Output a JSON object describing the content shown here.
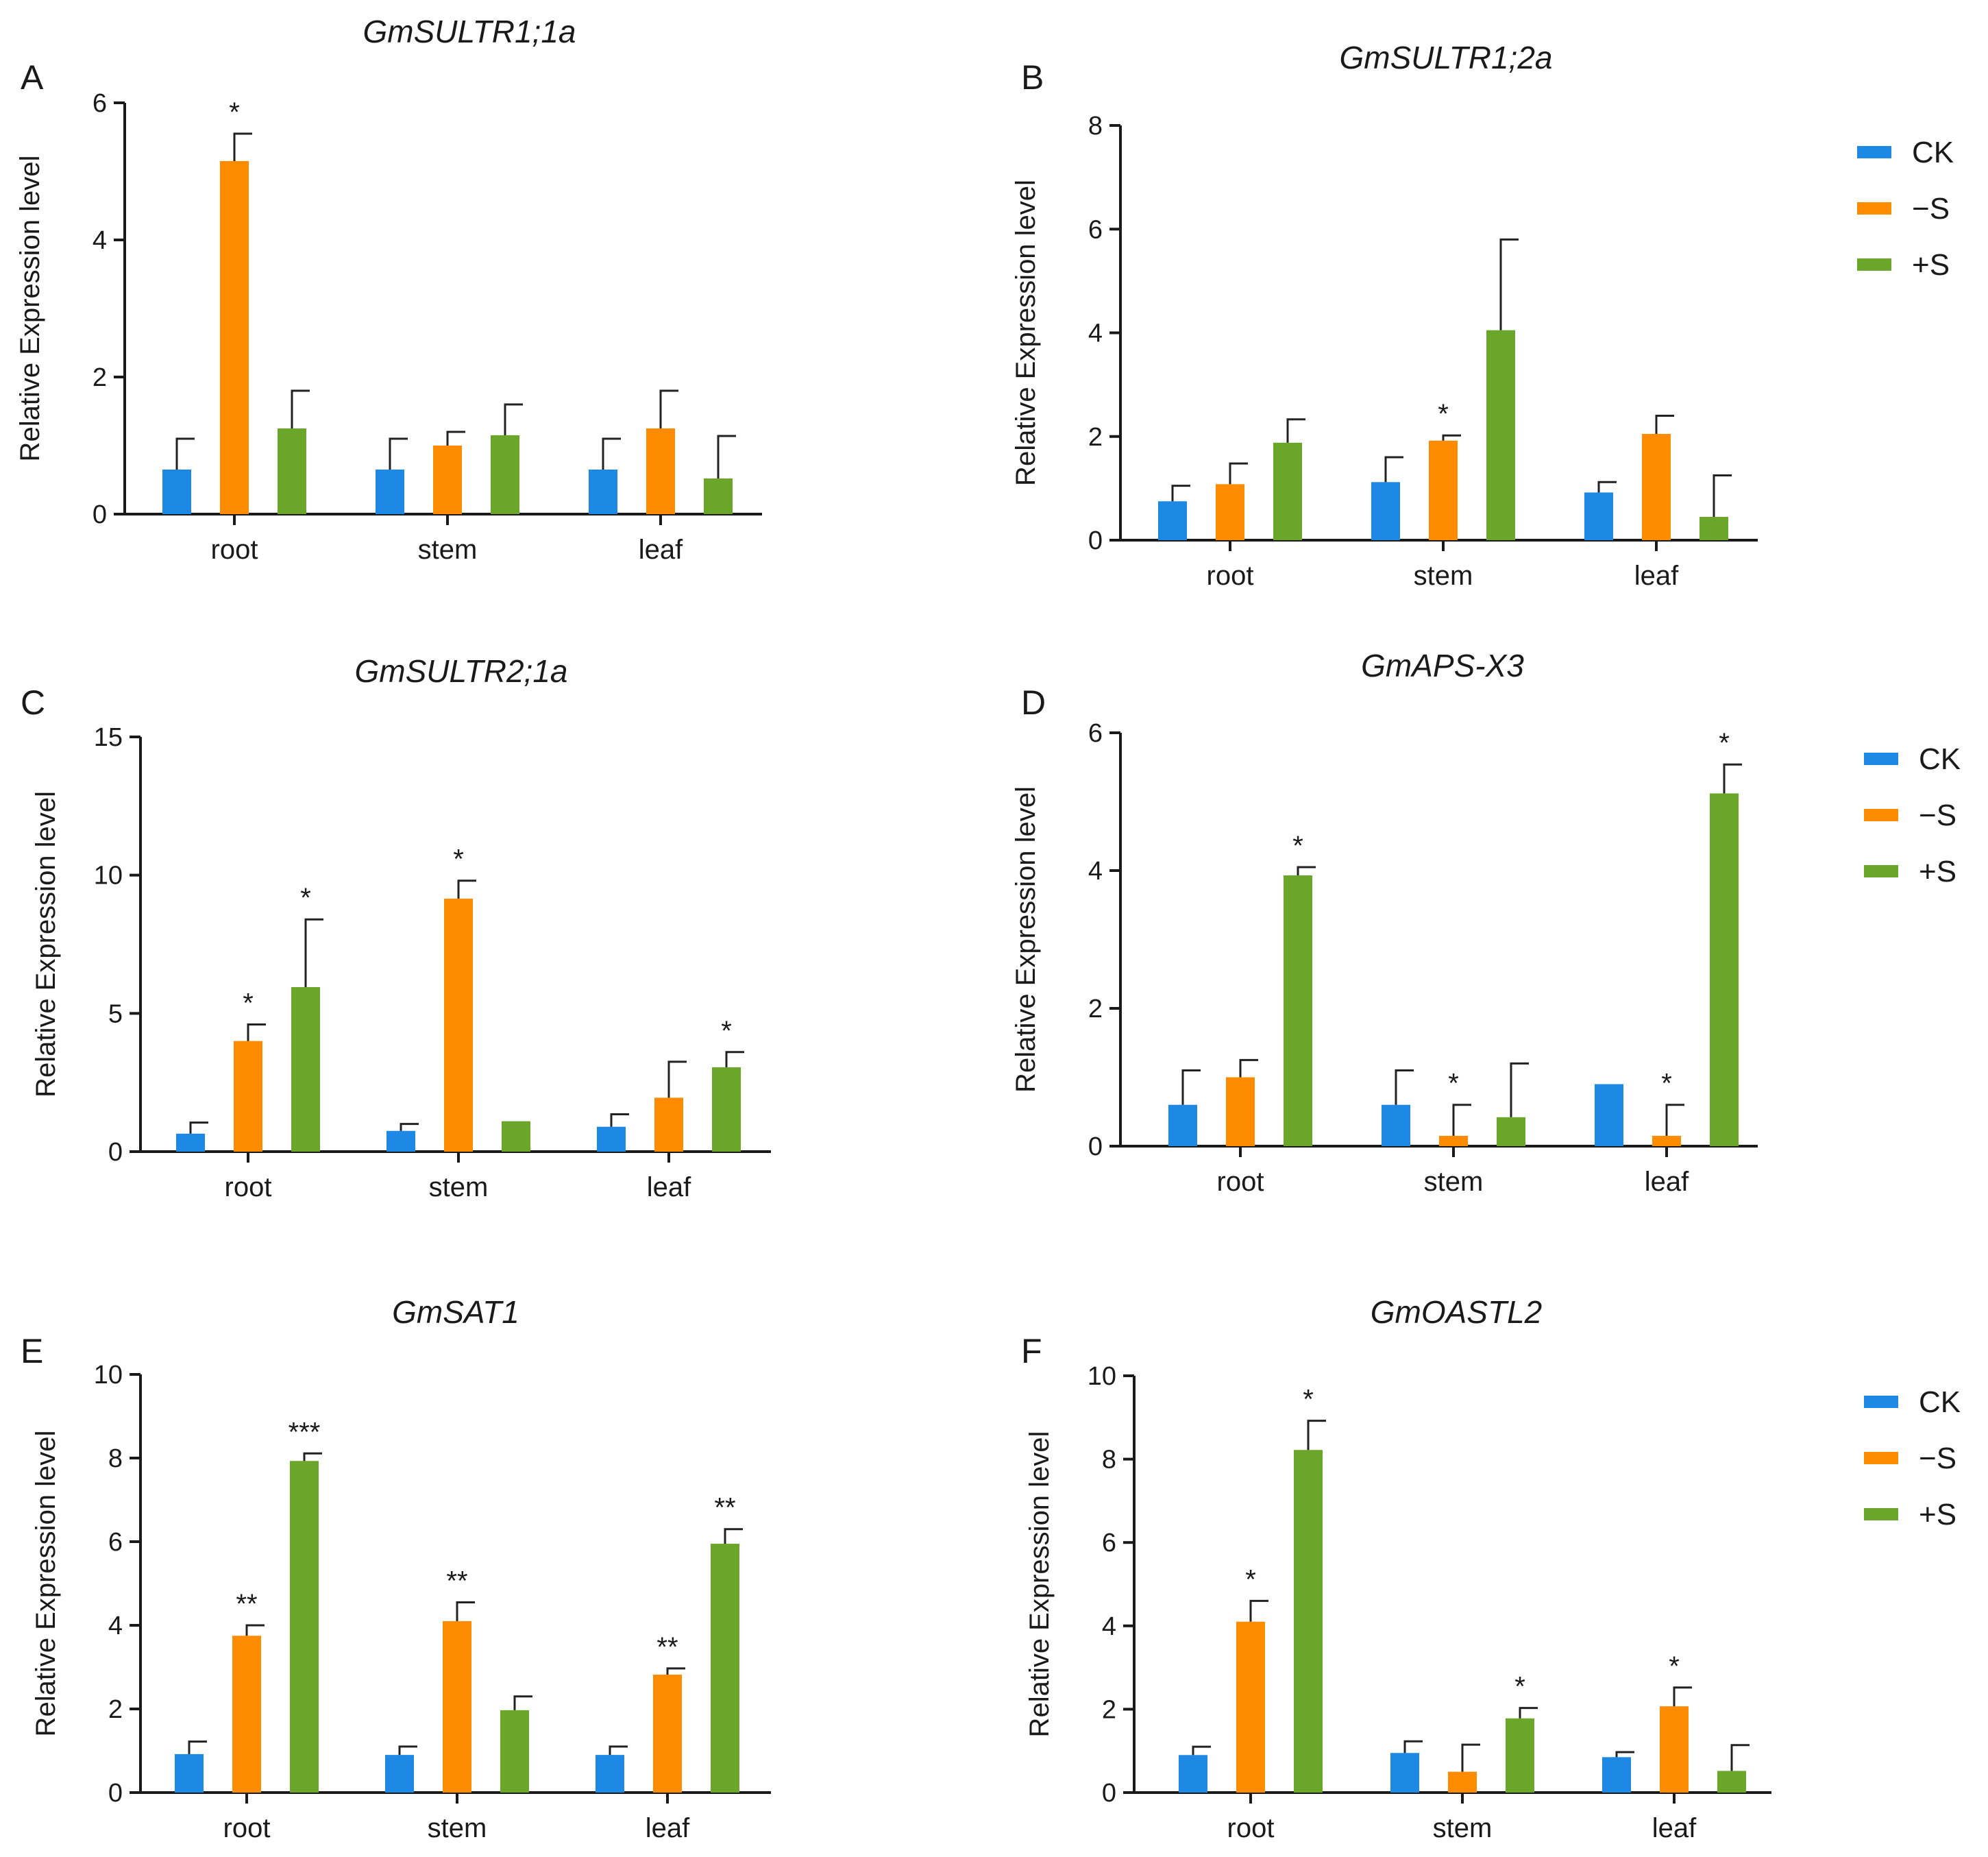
{
  "chart_data": [
    {
      "panel": "A",
      "type": "bar",
      "title": "GmSULTR1;1a",
      "ylabel": "Relative Expression level",
      "ylim": [
        0,
        6
      ],
      "yticks": [
        0,
        2,
        4,
        6
      ],
      "categories": [
        "root",
        "stem",
        "leaf"
      ],
      "series": [
        {
          "name": "CK",
          "color": "#1e88e5",
          "values": [
            0.65,
            0.65,
            0.65
          ],
          "errors": [
            0.45,
            0.45,
            0.45
          ],
          "sig": [
            "",
            "",
            ""
          ]
        },
        {
          "name": "−S",
          "color": "#ff8c00",
          "values": [
            5.15,
            1.0,
            1.25
          ],
          "errors": [
            0.4,
            0.2,
            0.55
          ],
          "sig": [
            "*",
            "",
            ""
          ]
        },
        {
          "name": "+S",
          "color": "#6aa62a",
          "values": [
            1.25,
            1.15,
            0.52
          ],
          "errors": [
            0.55,
            0.45,
            0.62
          ],
          "sig": [
            "",
            "",
            ""
          ]
        }
      ],
      "legend": false
    },
    {
      "panel": "B",
      "type": "bar",
      "title": "GmSULTR1;2a",
      "ylabel": "Relative Expression level",
      "ylim": [
        0,
        8
      ],
      "yticks": [
        0,
        2,
        4,
        6,
        8
      ],
      "categories": [
        "root",
        "stem",
        "leaf"
      ],
      "series": [
        {
          "name": "CK",
          "color": "#1e88e5",
          "values": [
            0.75,
            1.12,
            0.92
          ],
          "errors": [
            0.3,
            0.48,
            0.2
          ],
          "sig": [
            "",
            "",
            ""
          ]
        },
        {
          "name": "−S",
          "color": "#ff8c00",
          "values": [
            1.08,
            1.92,
            2.05
          ],
          "errors": [
            0.4,
            0.1,
            0.35
          ],
          "sig": [
            "",
            "*",
            ""
          ]
        },
        {
          "name": "+S",
          "color": "#6aa62a",
          "values": [
            1.88,
            4.05,
            0.45
          ],
          "errors": [
            0.45,
            1.75,
            0.8
          ],
          "sig": [
            "",
            "",
            ""
          ]
        }
      ],
      "legend": true
    },
    {
      "panel": "C",
      "type": "bar",
      "title": "GmSULTR2;1a",
      "ylabel": "Relative Expression level",
      "ylim": [
        0,
        15
      ],
      "yticks": [
        0,
        5,
        10,
        15
      ],
      "categories": [
        "root",
        "stem",
        "leaf"
      ],
      "series": [
        {
          "name": "CK",
          "color": "#1e88e5",
          "values": [
            0.65,
            0.75,
            0.9
          ],
          "errors": [
            0.4,
            0.25,
            0.45
          ],
          "sig": [
            "",
            "",
            ""
          ]
        },
        {
          "name": "−S",
          "color": "#ff8c00",
          "values": [
            4.0,
            9.15,
            1.95
          ],
          "errors": [
            0.6,
            0.65,
            1.3
          ],
          "sig": [
            "*",
            "*",
            ""
          ]
        },
        {
          "name": "+S",
          "color": "#6aa62a",
          "values": [
            5.95,
            1.1,
            3.05
          ],
          "errors": [
            2.45,
            0.0,
            0.55
          ],
          "sig": [
            "*",
            "",
            "*"
          ]
        }
      ],
      "legend": false
    },
    {
      "panel": "D",
      "type": "bar",
      "title": "GmAPS-X3",
      "ylabel": "Relative Expression level",
      "ylim": [
        0,
        6
      ],
      "yticks": [
        0,
        2,
        4,
        6
      ],
      "categories": [
        "root",
        "stem",
        "leaf"
      ],
      "series": [
        {
          "name": "CK",
          "color": "#1e88e5",
          "values": [
            0.6,
            0.6,
            0.9
          ],
          "errors": [
            0.5,
            0.5,
            0.0
          ],
          "sig": [
            "",
            "",
            ""
          ]
        },
        {
          "name": "−S",
          "color": "#ff8c00",
          "values": [
            1.0,
            0.15,
            0.15
          ],
          "errors": [
            0.25,
            0.45,
            0.45
          ],
          "sig": [
            "",
            "*",
            "*"
          ]
        },
        {
          "name": "+S",
          "color": "#6aa62a",
          "values": [
            3.93,
            0.42,
            5.12
          ],
          "errors": [
            0.12,
            0.78,
            0.42
          ],
          "sig": [
            "*",
            "",
            "*"
          ]
        }
      ],
      "legend": true
    },
    {
      "panel": "E",
      "type": "bar",
      "title": "GmSAT1",
      "ylabel": "Relative Expression level",
      "ylim": [
        0,
        10
      ],
      "yticks": [
        0,
        2,
        4,
        6,
        8,
        10
      ],
      "categories": [
        "root",
        "stem",
        "leaf"
      ],
      "series": [
        {
          "name": "CK",
          "color": "#1e88e5",
          "values": [
            0.92,
            0.9,
            0.9
          ],
          "errors": [
            0.3,
            0.2,
            0.2
          ],
          "sig": [
            "",
            "",
            ""
          ]
        },
        {
          "name": "−S",
          "color": "#ff8c00",
          "values": [
            3.75,
            4.1,
            2.82
          ],
          "errors": [
            0.25,
            0.45,
            0.15
          ],
          "sig": [
            "**",
            "**",
            "**"
          ]
        },
        {
          "name": "+S",
          "color": "#6aa62a",
          "values": [
            7.93,
            1.97,
            5.95
          ],
          "errors": [
            0.18,
            0.33,
            0.35
          ],
          "sig": [
            "***",
            "",
            "**"
          ]
        }
      ],
      "legend": false
    },
    {
      "panel": "F",
      "type": "bar",
      "title": "GmOASTL2",
      "ylabel": "Relative Expression level",
      "ylim": [
        0,
        10
      ],
      "yticks": [
        0,
        2,
        4,
        6,
        8,
        10
      ],
      "categories": [
        "root",
        "stem",
        "leaf"
      ],
      "series": [
        {
          "name": "CK",
          "color": "#1e88e5",
          "values": [
            0.9,
            0.95,
            0.85
          ],
          "errors": [
            0.2,
            0.28,
            0.12
          ],
          "sig": [
            "",
            "",
            ""
          ]
        },
        {
          "name": "−S",
          "color": "#ff8c00",
          "values": [
            4.1,
            0.5,
            2.07
          ],
          "errors": [
            0.5,
            0.65,
            0.45
          ],
          "sig": [
            "*",
            "",
            "*"
          ]
        },
        {
          "name": "+S",
          "color": "#6aa62a",
          "values": [
            8.22,
            1.78,
            0.52
          ],
          "errors": [
            0.7,
            0.25,
            0.62
          ],
          "sig": [
            "*",
            "*",
            ""
          ]
        }
      ],
      "legend": true
    }
  ]
}
